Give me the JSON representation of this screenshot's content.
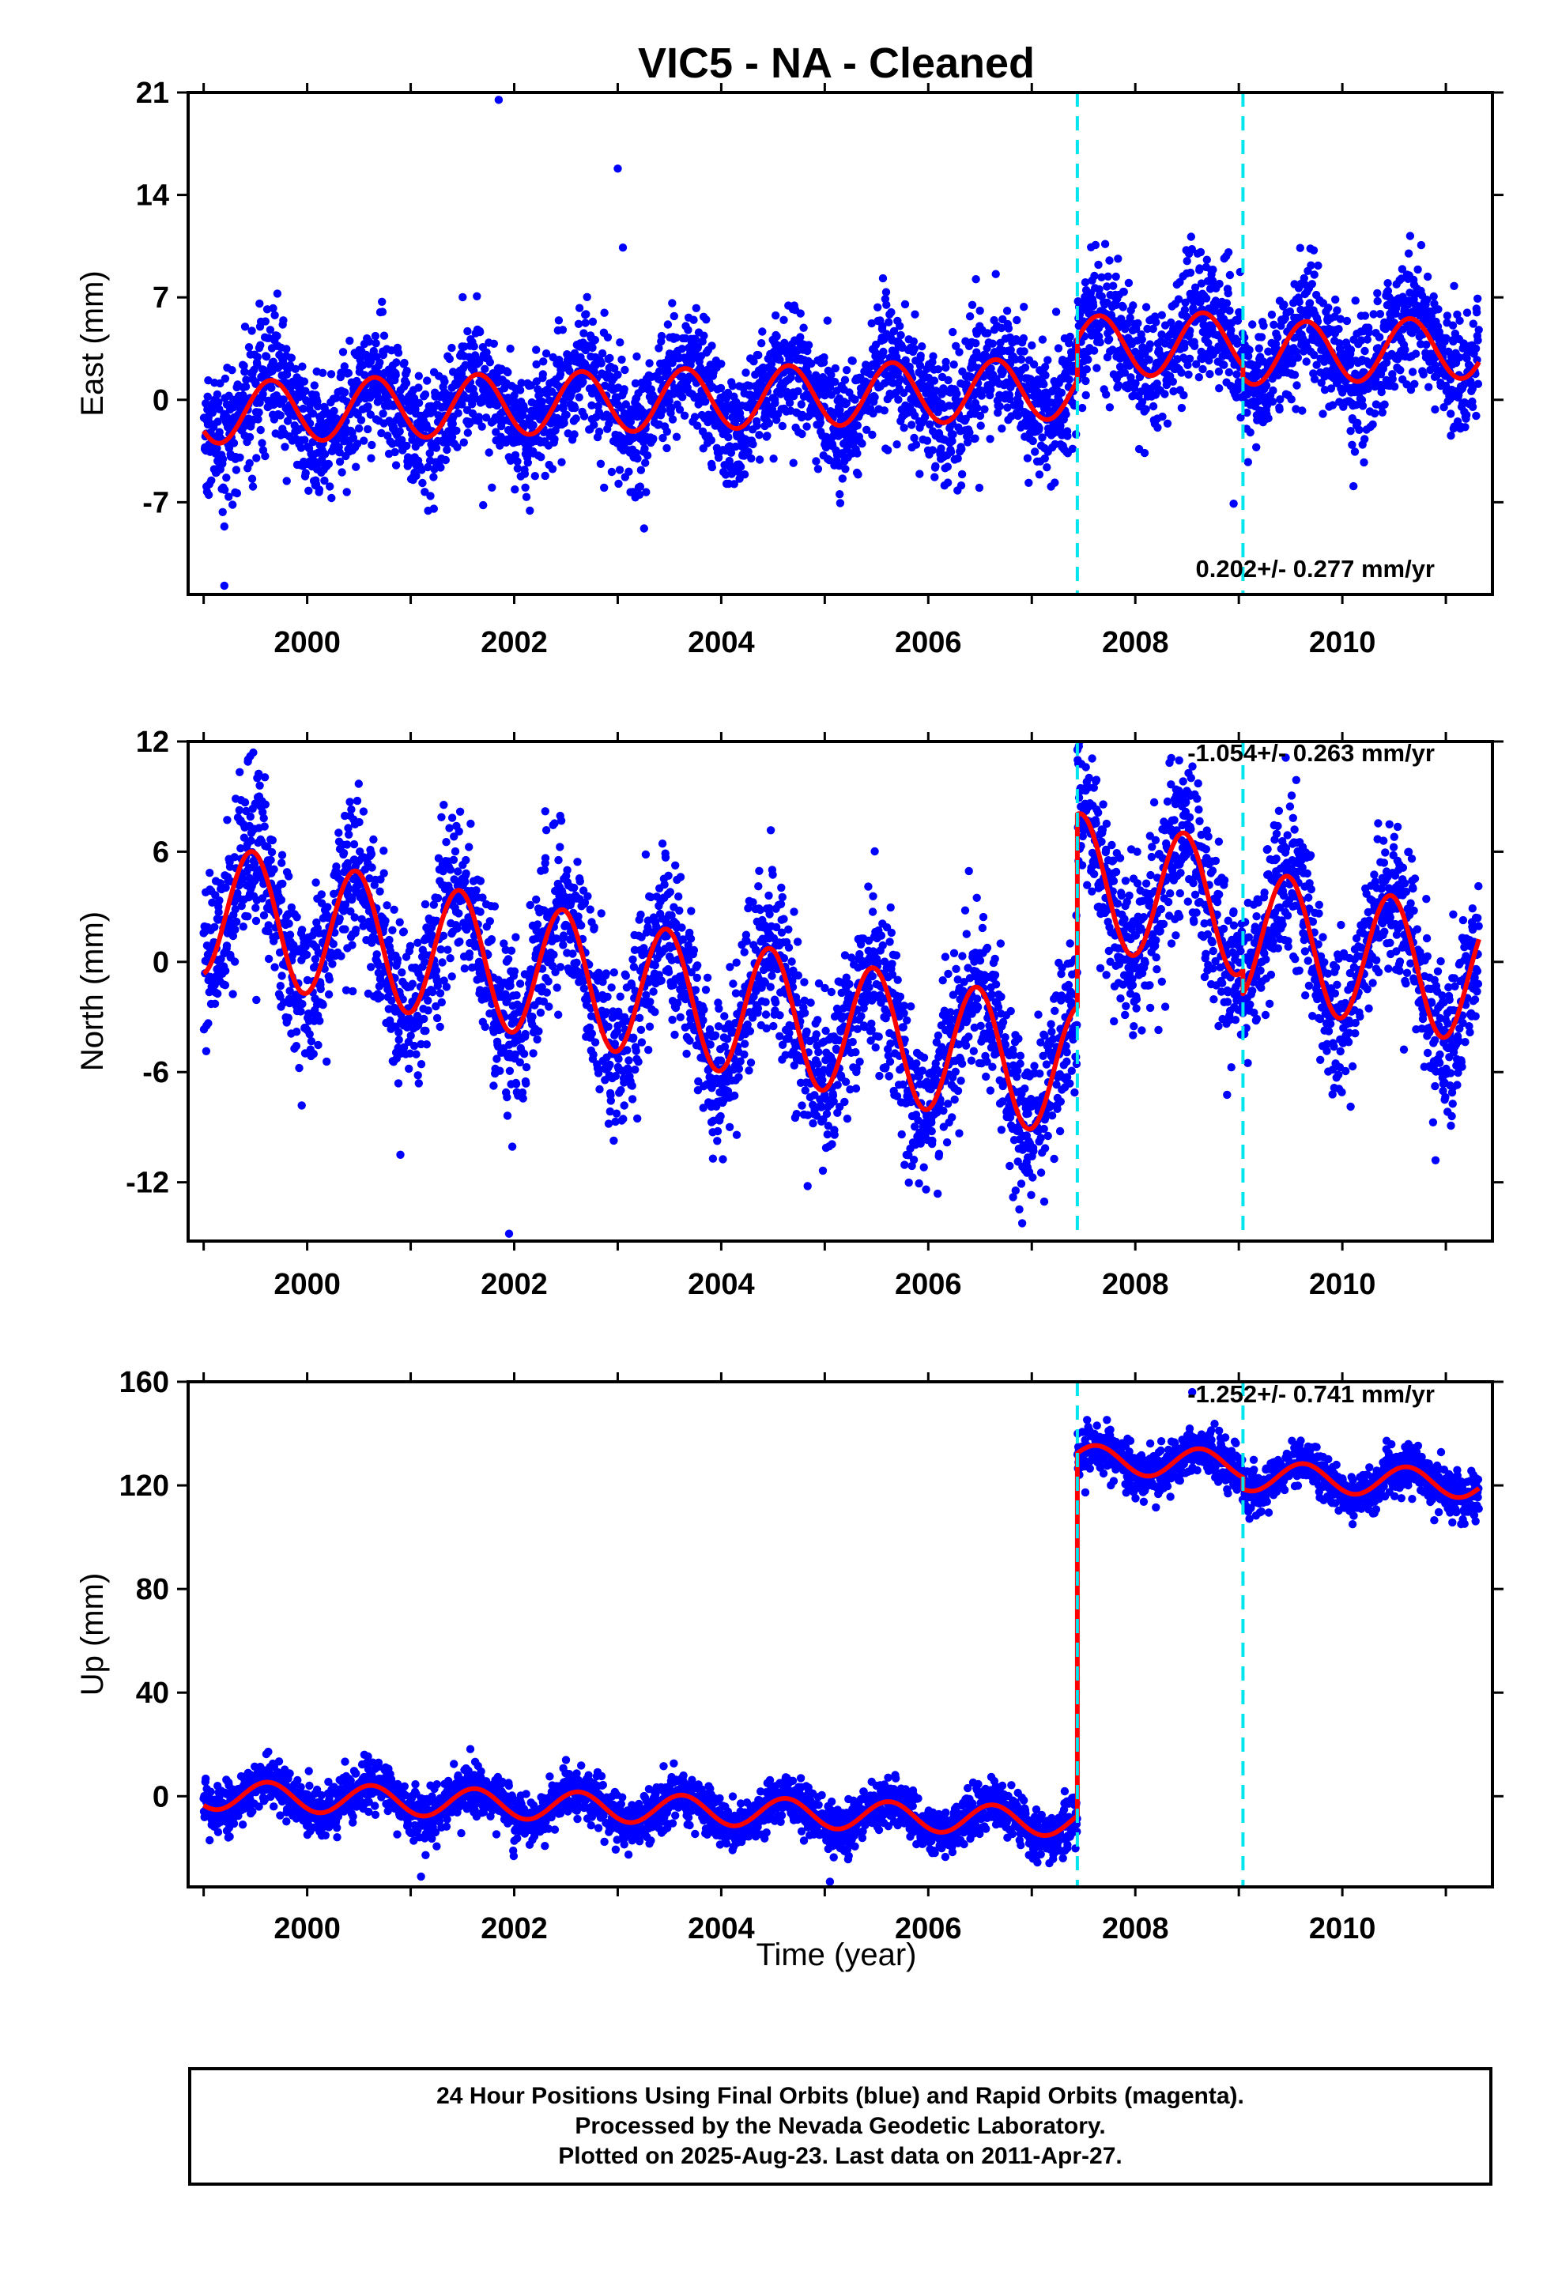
{
  "figure": {
    "title": "VIC5  - NA - Cleaned",
    "x_axis_label": "Time (year)"
  },
  "caption": {
    "lines": [
      "24 Hour Positions Using Final Orbits (blue) and Rapid Orbits (magenta).",
      "Processed by the Nevada Geodetic Laboratory.",
      "Plotted on 2025-Aug-23. Last data on 2011-Apr-27."
    ]
  },
  "colors": {
    "final_orbits": "#0000ff",
    "model_fit": "#ff0000",
    "equipment_change": "#00e5ee",
    "axes": "#000000"
  },
  "chart_data": [
    {
      "type": "scatter",
      "component": "east",
      "ylabel": "East (mm)",
      "xlim": [
        1998.85,
        2011.45
      ],
      "ylim": [
        -13.3,
        21
      ],
      "yticks": [
        21,
        14,
        7,
        0,
        -7
      ],
      "xticks": [
        2000,
        2002,
        2004,
        2006,
        2008,
        2010
      ],
      "rate_text": "0.202+/- 0.277 mm/yr",
      "offset_epochs": [
        2007.44,
        2009.04
      ],
      "trend": {
        "start": 1999.0,
        "end": 2011.32,
        "value_at_start": -0.9,
        "rate_mm_per_yr": 0.202,
        "annual_amplitude": 2.1,
        "annual_phase_year": 0.65
      },
      "steps": [
        {
          "x": 2007.44,
          "dy": 2.8
        },
        {
          "x": 2009.04,
          "dy": -0.8
        }
      ],
      "scatter_noise_mm": 2.1,
      "outliers": [
        [
          2001.85,
          20.5
        ],
        [
          2003.0,
          15.8
        ],
        [
          2003.05,
          10.4
        ],
        [
          1999.2,
          -12.7
        ],
        [
          2008.95,
          -7.1
        ],
        [
          2001.7,
          -7.2
        ]
      ]
    },
    {
      "type": "scatter",
      "component": "north",
      "ylabel": "North (mm)",
      "xlim": [
        1998.85,
        2011.45
      ],
      "ylim": [
        -15.2,
        12
      ],
      "yticks": [
        12,
        6,
        0,
        -6,
        -12
      ],
      "xticks": [
        2000,
        2002,
        2004,
        2006,
        2008,
        2010
      ],
      "rate_text": "-1.054+/- 0.263 mm/yr",
      "offset_epochs": [
        2007.44,
        2009.04
      ],
      "trend": {
        "start": 1999.0,
        "end": 2011.32,
        "value_at_start": 2.9,
        "rate_mm_per_yr": -1.054,
        "annual_amplitude": 3.6,
        "annual_phase_year": 0.47
      },
      "steps": [
        {
          "x": 2007.44,
          "dy": 10.5
        },
        {
          "x": 2009.04,
          "dy": -1.3
        }
      ],
      "scatter_noise_mm": 2.2,
      "outliers": [
        [
          2001.95,
          -14.8
        ],
        [
          2000.9,
          -10.5
        ],
        [
          2006.95,
          -10.9
        ],
        [
          2010.9,
          -10.8
        ],
        [
          1999.45,
          11.2
        ],
        [
          2002.3,
          8.2
        ]
      ]
    },
    {
      "type": "scatter",
      "component": "up",
      "ylabel": "Up (mm)",
      "xlim": [
        1998.85,
        2011.45
      ],
      "ylim": [
        -35,
        160
      ],
      "yticks": [
        160,
        120,
        80,
        40,
        0
      ],
      "xticks": [
        2000,
        2002,
        2004,
        2006,
        2008,
        2010
      ],
      "rate_text": "-1.252+/- 0.741 mm/yr",
      "offset_epochs": [
        2007.44,
        2009.04
      ],
      "trend": {
        "start": 1999.0,
        "end": 2011.32,
        "value_at_start": 0.6,
        "rate_mm_per_yr": -1.252,
        "annual_amplitude": 5.6,
        "annual_phase_year": 0.62
      },
      "steps": [
        {
          "x": 2007.44,
          "dy": 140
        },
        {
          "x": 2009.04,
          "dy": -4.5
        }
      ],
      "scatter_noise_mm": 4.6,
      "outliers": [
        [
          2008.55,
          156
        ],
        [
          2005.05,
          -33
        ],
        [
          2001.1,
          -31
        ],
        [
          2002.5,
          14
        ]
      ]
    }
  ]
}
